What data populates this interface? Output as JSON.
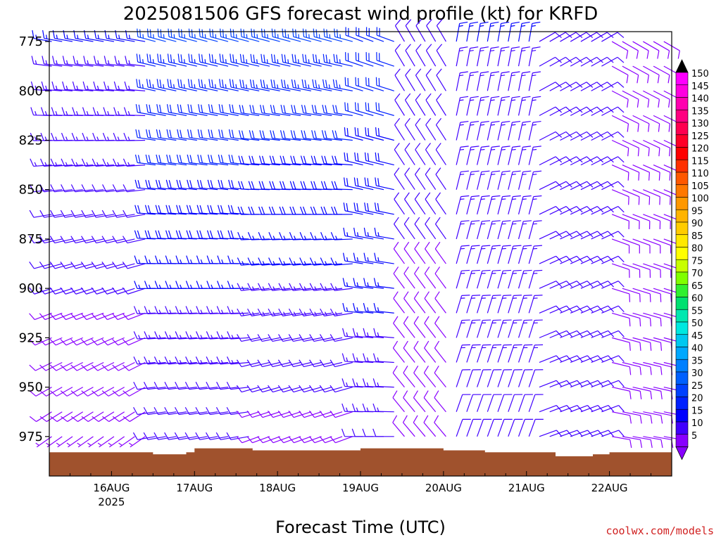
{
  "title": "2025081506 GFS forecast wind profile (kt) for KRFD",
  "xlabel": "Forecast Time (UTC)",
  "credit": "coolwx.com/models",
  "colorbar": {
    "arrow_top_color": "#000000",
    "arrow_bottom_color": "#8800ff",
    "levels": [
      {
        "label": "150",
        "color": "#ff00ff"
      },
      {
        "label": "145",
        "color": "#ff00e0"
      },
      {
        "label": "140",
        "color": "#ff00b0"
      },
      {
        "label": "135",
        "color": "#ff0080"
      },
      {
        "label": "130",
        "color": "#ff0050"
      },
      {
        "label": "125",
        "color": "#ff0028"
      },
      {
        "label": "120",
        "color": "#ff0000"
      },
      {
        "label": "115",
        "color": "#ff3000"
      },
      {
        "label": "110",
        "color": "#ff5800"
      },
      {
        "label": "105",
        "color": "#ff7800"
      },
      {
        "label": "100",
        "color": "#ff9800"
      },
      {
        "label": "95",
        "color": "#ffb400"
      },
      {
        "label": "90",
        "color": "#ffcc00"
      },
      {
        "label": "85",
        "color": "#ffe800"
      },
      {
        "label": "80",
        "color": "#ffff00"
      },
      {
        "label": "75",
        "color": "#c8ff00"
      },
      {
        "label": "70",
        "color": "#80ff00"
      },
      {
        "label": "65",
        "color": "#30f030"
      },
      {
        "label": "60",
        "color": "#00e070"
      },
      {
        "label": "55",
        "color": "#00e8b0"
      },
      {
        "label": "50",
        "color": "#00e8e0"
      },
      {
        "label": "45",
        "color": "#00c8f0"
      },
      {
        "label": "40",
        "color": "#00a8ff"
      },
      {
        "label": "35",
        "color": "#0080ff"
      },
      {
        "label": "30",
        "color": "#0060ff"
      },
      {
        "label": "25",
        "color": "#0040ff"
      },
      {
        "label": "20",
        "color": "#0020ff"
      },
      {
        "label": "15",
        "color": "#0000ff"
      },
      {
        "label": "10",
        "color": "#4000ff"
      },
      {
        "label": "5",
        "color": "#8800ff"
      }
    ]
  },
  "chart_data": {
    "type": "wind-barb-profile",
    "title": "2025081506 GFS forecast wind profile (kt) for KRFD",
    "xlabel": "Forecast Time (UTC)",
    "ylabel": "",
    "y_inverted": true,
    "ylim": [
      995,
      770
    ],
    "y_ticks": [
      775,
      800,
      825,
      850,
      875,
      900,
      925,
      950,
      975
    ],
    "x_ticks": [
      {
        "label": "16AUG",
        "sub": "2025",
        "day": 1
      },
      {
        "label": "17AUG",
        "sub": "",
        "day": 2
      },
      {
        "label": "18AUG",
        "sub": "",
        "day": 3
      },
      {
        "label": "19AUG",
        "sub": "",
        "day": 4
      },
      {
        "label": "20AUG",
        "sub": "",
        "day": 5
      },
      {
        "label": "21AUG",
        "sub": "",
        "day": 6
      },
      {
        "label": "22AUG",
        "sub": "",
        "day": 7
      }
    ],
    "xlim_days": [
      0.25,
      7.75
    ],
    "barb_step_hours": 3,
    "terrain_color": "#a0522d",
    "terrain_surface_hpa": [
      {
        "day": 0.25,
        "p": 983
      },
      {
        "day": 1.0,
        "p": 983
      },
      {
        "day": 1.5,
        "p": 984
      },
      {
        "day": 1.9,
        "p": 983
      },
      {
        "day": 2.0,
        "p": 981
      },
      {
        "day": 2.5,
        "p": 981
      },
      {
        "day": 2.7,
        "p": 982
      },
      {
        "day": 3.5,
        "p": 982
      },
      {
        "day": 4.0,
        "p": 981
      },
      {
        "day": 4.5,
        "p": 981
      },
      {
        "day": 5.0,
        "p": 982
      },
      {
        "day": 5.5,
        "p": 983
      },
      {
        "day": 6.0,
        "p": 983
      },
      {
        "day": 6.35,
        "p": 985
      },
      {
        "day": 6.65,
        "p": 985
      },
      {
        "day": 6.8,
        "p": 984
      },
      {
        "day": 7.0,
        "p": 983
      },
      {
        "day": 7.5,
        "p": 983
      },
      {
        "day": 7.75,
        "p": 982
      }
    ],
    "wind_regimes": [
      {
        "from_day": 0.25,
        "to_day": 1.45,
        "dir_upper": 280,
        "dir_lower": 235,
        "spd_upper": 15,
        "spd_lower": 7
      },
      {
        "from_day": 1.45,
        "to_day": 2.75,
        "dir_upper": 285,
        "dir_lower": 260,
        "spd_upper": 25,
        "spd_lower": 10
      },
      {
        "from_day": 2.75,
        "to_day": 3.95,
        "dir_upper": 285,
        "dir_lower": 250,
        "spd_upper": 25,
        "spd_lower": 8
      },
      {
        "from_day": 3.95,
        "to_day": 4.45,
        "dir_upper": 290,
        "dir_lower": 270,
        "spd_upper": 22,
        "spd_lower": 12
      },
      {
        "from_day": 4.45,
        "to_day": 5.05,
        "dir_upper": 330,
        "dir_lower": 320,
        "spd_upper": 12,
        "spd_lower": 8
      },
      {
        "from_day": 5.05,
        "to_day": 6.05,
        "dir_upper": 10,
        "dir_lower": 20,
        "spd_upper": 15,
        "spd_lower": 12
      },
      {
        "from_day": 6.05,
        "to_day": 7.0,
        "dir_upper": 60,
        "dir_lower": 70,
        "spd_upper": 10,
        "spd_lower": 10
      },
      {
        "from_day": 7.0,
        "to_day": 7.75,
        "dir_upper": 120,
        "dir_lower": 100,
        "spd_upper": 8,
        "spd_lower": 8
      }
    ]
  }
}
